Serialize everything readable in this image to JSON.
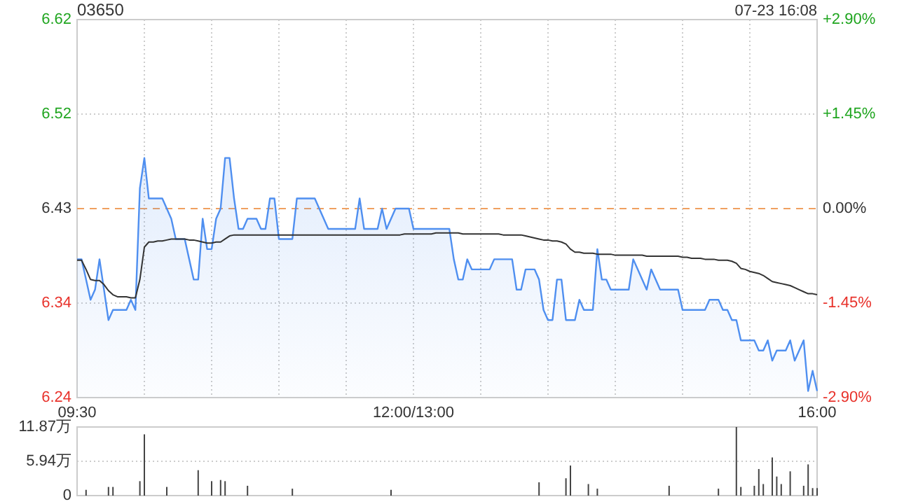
{
  "chart_data": [
    {
      "type": "line",
      "title": "03650",
      "annotations": [
        "07-23 16:08"
      ],
      "categories": [
        "09:30",
        null,
        null,
        null,
        null,
        null,
        null,
        null,
        null,
        null,
        null,
        null,
        null,
        null,
        null,
        null,
        null,
        null,
        null,
        null,
        null,
        null,
        null,
        null,
        null,
        null,
        null,
        null,
        null,
        null,
        null,
        null,
        null,
        null,
        null,
        null,
        null,
        null,
        null,
        null,
        null,
        null,
        null,
        null,
        null,
        null,
        null,
        null,
        null,
        null,
        null,
        null,
        null,
        null,
        null,
        null,
        null,
        null,
        null,
        null,
        null,
        null,
        null,
        null,
        null,
        null,
        null,
        null,
        null,
        null,
        null,
        null,
        null,
        null,
        null,
        "12:00/13:00",
        null,
        null,
        null,
        null,
        null,
        null,
        null,
        null,
        null,
        null,
        null,
        null,
        null,
        null,
        null,
        null,
        null,
        null,
        null,
        null,
        null,
        null,
        null,
        null,
        null,
        null,
        null,
        null,
        null,
        null,
        null,
        null,
        null,
        null,
        null,
        null,
        null,
        null,
        null,
        null,
        null,
        null,
        null,
        null,
        null,
        null,
        null,
        null,
        null,
        null,
        null,
        null,
        null,
        null,
        null,
        null,
        null,
        null,
        null,
        null,
        null,
        null,
        null,
        null,
        null,
        null,
        null,
        null,
        null,
        null,
        null,
        null,
        null,
        null,
        null,
        null,
        null,
        null,
        null,
        null,
        null,
        null,
        null,
        null,
        null,
        null,
        null,
        null,
        null,
        "16:00"
      ],
      "ylim": [
        6.2435,
        6.6165
      ],
      "yticks": [
        {
          "value": 6.2435,
          "label": "6.24"
        },
        {
          "value": 6.3367,
          "label": "6.34"
        },
        {
          "value": 6.43,
          "label": "6.43"
        },
        {
          "value": 6.5233,
          "label": "6.52"
        },
        {
          "value": 6.6165,
          "label": "6.62"
        }
      ],
      "y2lim": [
        -2.9,
        2.9
      ],
      "y2ticks": [
        {
          "value": -2.9,
          "label": "-2.90%"
        },
        {
          "value": -1.45,
          "label": "-1.45%"
        },
        {
          "value": 0,
          "label": "0.00%"
        },
        {
          "value": 1.45,
          "label": "+1.45%"
        },
        {
          "value": 2.9,
          "label": "+2.90%"
        }
      ],
      "grid": true,
      "ref_lines": [
        {
          "axis": "y",
          "value": 6.43,
          "color": "#f0a060",
          "line_style": "dashed"
        }
      ],
      "series": [
        {
          "type": "area",
          "color": "#4f8ff0",
          "values": [
            6.38,
            6.38,
            6.36,
            6.34,
            6.35,
            6.38,
            6.35,
            6.32,
            6.33,
            6.33,
            6.33,
            6.33,
            6.34,
            6.33,
            6.45,
            6.48,
            6.44,
            6.44,
            6.44,
            6.44,
            6.43,
            6.42,
            6.4,
            6.4,
            6.4,
            6.38,
            6.36,
            6.36,
            6.42,
            6.39,
            6.39,
            6.42,
            6.43,
            6.48,
            6.48,
            6.44,
            6.41,
            6.41,
            6.42,
            6.42,
            6.42,
            6.41,
            6.41,
            6.44,
            6.44,
            6.4,
            6.4,
            6.4,
            6.4,
            6.44,
            6.44,
            6.44,
            6.44,
            6.44,
            6.43,
            6.42,
            6.41,
            6.41,
            6.41,
            6.41,
            6.41,
            6.41,
            6.41,
            6.44,
            6.41,
            6.41,
            6.41,
            6.41,
            6.43,
            6.41,
            6.42,
            6.43,
            6.43,
            6.43,
            6.43,
            6.41,
            6.41,
            6.41,
            6.41,
            6.41,
            6.41,
            6.41,
            6.41,
            6.41,
            6.38,
            6.36,
            6.36,
            6.38,
            6.37,
            6.37,
            6.37,
            6.37,
            6.37,
            6.38,
            6.38,
            6.38,
            6.38,
            6.38,
            6.35,
            6.35,
            6.37,
            6.37,
            6.37,
            6.36,
            6.33,
            6.32,
            6.32,
            6.36,
            6.36,
            6.32,
            6.32,
            6.32,
            6.34,
            6.33,
            6.33,
            6.33,
            6.39,
            6.36,
            6.36,
            6.35,
            6.35,
            6.35,
            6.35,
            6.35,
            6.38,
            6.37,
            6.36,
            6.35,
            6.37,
            6.36,
            6.35,
            6.35,
            6.35,
            6.35,
            6.35,
            6.33,
            6.33,
            6.33,
            6.33,
            6.33,
            6.33,
            6.34,
            6.34,
            6.34,
            6.33,
            6.33,
            6.32,
            6.32,
            6.3,
            6.3,
            6.3,
            6.3,
            6.29,
            6.29,
            6.3,
            6.28,
            6.29,
            6.29,
            6.29,
            6.3,
            6.28,
            6.29,
            6.3,
            6.25,
            6.27,
            6.25
          ]
        },
        {
          "color": "#333333",
          "values": [
            6.379,
            6.379,
            6.37,
            6.36,
            6.359,
            6.359,
            6.355,
            6.349,
            6.345,
            6.343,
            6.343,
            6.343,
            6.342,
            6.342,
            6.36,
            6.392,
            6.397,
            6.397,
            6.398,
            6.398,
            6.399,
            6.4,
            6.4,
            6.4,
            6.4,
            6.399,
            6.399,
            6.398,
            6.397,
            6.396,
            6.396,
            6.397,
            6.397,
            6.4,
            6.403,
            6.404,
            6.404,
            6.404,
            6.404,
            6.404,
            6.404,
            6.404,
            6.404,
            6.404,
            6.404,
            6.404,
            6.404,
            6.404,
            6.404,
            6.404,
            6.404,
            6.404,
            6.404,
            6.404,
            6.404,
            6.404,
            6.404,
            6.404,
            6.404,
            6.404,
            6.404,
            6.404,
            6.404,
            6.404,
            6.404,
            6.404,
            6.404,
            6.404,
            6.404,
            6.404,
            6.404,
            6.404,
            6.404,
            6.405,
            6.405,
            6.405,
            6.405,
            6.405,
            6.405,
            6.405,
            6.406,
            6.406,
            6.406,
            6.406,
            6.406,
            6.406,
            6.405,
            6.405,
            6.405,
            6.405,
            6.405,
            6.405,
            6.405,
            6.405,
            6.405,
            6.404,
            6.404,
            6.404,
            6.404,
            6.404,
            6.403,
            6.402,
            6.401,
            6.4,
            6.399,
            6.399,
            6.398,
            6.398,
            6.397,
            6.395,
            6.39,
            6.387,
            6.387,
            6.386,
            6.386,
            6.386,
            6.385,
            6.385,
            6.385,
            6.385,
            6.384,
            6.384,
            6.384,
            6.384,
            6.384,
            6.384,
            6.384,
            6.383,
            6.383,
            6.383,
            6.383,
            6.383,
            6.383,
            6.383,
            6.383,
            6.382,
            6.382,
            6.381,
            6.381,
            6.381,
            6.38,
            6.38,
            6.38,
            6.379,
            6.379,
            6.379,
            6.378,
            6.376,
            6.371,
            6.37,
            6.368,
            6.367,
            6.366,
            6.364,
            6.361,
            6.358,
            6.357,
            6.356,
            6.355,
            6.354,
            6.352,
            6.35,
            6.348,
            6.346,
            6.346,
            6.345
          ]
        }
      ]
    },
    {
      "type": "bar",
      "color": "#444444",
      "categories": [
        null,
        null,
        null,
        null,
        null,
        null,
        null,
        null,
        null,
        null,
        null,
        null,
        null,
        null,
        null,
        null,
        null,
        null,
        null,
        null,
        null,
        null,
        null,
        null,
        null,
        null,
        null,
        null,
        null,
        null,
        null,
        null,
        null,
        null,
        null,
        null,
        null,
        null,
        null,
        null,
        null,
        null,
        null,
        null,
        null,
        null,
        null,
        null,
        null,
        null,
        null,
        null,
        null,
        null,
        null,
        null,
        null,
        null,
        null,
        null,
        null,
        null,
        null,
        null,
        null,
        null,
        null,
        null,
        null,
        null,
        null,
        null,
        null,
        null,
        null,
        null,
        null,
        null,
        null,
        null,
        null,
        null,
        null,
        null,
        null,
        null,
        null,
        null,
        null,
        null,
        null,
        null,
        null,
        null,
        null,
        null,
        null,
        null,
        null,
        null,
        null,
        null,
        null,
        null,
        null,
        null,
        null,
        null,
        null,
        null,
        null,
        null,
        null,
        null,
        null,
        null,
        null,
        null,
        null,
        null,
        null,
        null,
        null,
        null,
        null,
        null,
        null,
        null,
        null,
        null,
        null,
        null,
        null,
        null,
        null,
        null,
        null,
        null,
        null,
        null,
        null,
        null,
        null,
        null,
        null,
        null,
        null,
        null,
        null,
        null,
        null,
        null,
        null,
        null,
        null,
        null,
        null,
        null,
        null,
        null,
        null,
        null,
        null,
        null,
        null,
        null
      ],
      "ylim": [
        0,
        11.87
      ],
      "yticks": [
        {
          "value": 0,
          "label": "0"
        },
        {
          "value": 5.94,
          "label": "5.94万"
        },
        {
          "value": 11.87,
          "label": "11.87万"
        }
      ],
      "tick_labels": "y",
      "grid": "y",
      "values": [
        null,
        null,
        1.0,
        null,
        null,
        null,
        null,
        1.5,
        1.5,
        null,
        null,
        null,
        null,
        null,
        2.5,
        10.6,
        null,
        null,
        null,
        null,
        1.5,
        null,
        null,
        null,
        null,
        null,
        null,
        4.4,
        null,
        null,
        2.5,
        null,
        2.7,
        2.5,
        null,
        null,
        null,
        null,
        1.7,
        null,
        null,
        null,
        null,
        null,
        null,
        null,
        null,
        null,
        1.2,
        null,
        null,
        null,
        null,
        null,
        null,
        null,
        null,
        null,
        null,
        null,
        null,
        null,
        null,
        null,
        null,
        null,
        null,
        null,
        null,
        null,
        1.0,
        null,
        null,
        null,
        null,
        null,
        null,
        null,
        null,
        null,
        null,
        null,
        null,
        null,
        null,
        null,
        null,
        null,
        null,
        null,
        null,
        null,
        null,
        null,
        null,
        null,
        null,
        null,
        null,
        null,
        null,
        null,
        null,
        2.3,
        null,
        null,
        null,
        null,
        null,
        3.0,
        5.2,
        null,
        null,
        null,
        2.0,
        null,
        1.2,
        null,
        null,
        null,
        null,
        null,
        null,
        null,
        null,
        null,
        null,
        null,
        null,
        null,
        null,
        null,
        1.7,
        null,
        null,
        null,
        null,
        null,
        null,
        null,
        null,
        null,
        null,
        1.2,
        null,
        null,
        null,
        11.87,
        1.5,
        null,
        null,
        1.7,
        4.6,
        2.0,
        null,
        6.6,
        3.3,
        2.0,
        null,
        4.2,
        null,
        null,
        1.7,
        5.4,
        1.3,
        1.3
      ]
    }
  ]
}
